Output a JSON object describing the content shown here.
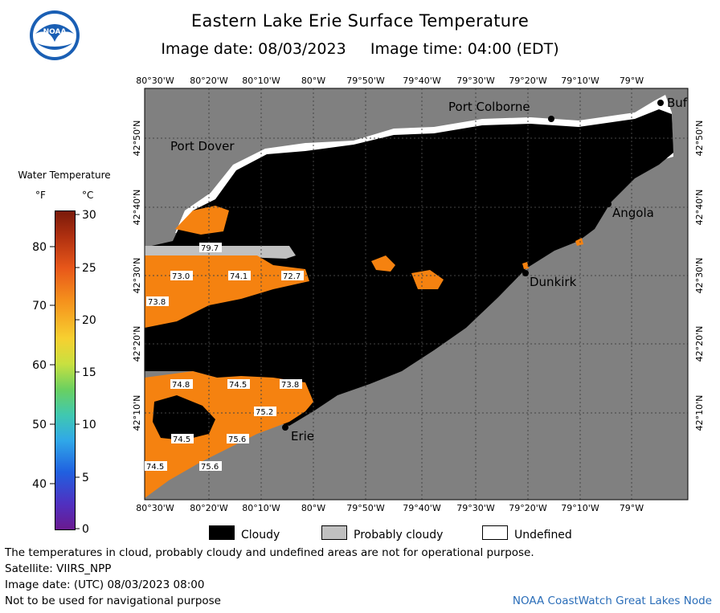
{
  "header": {
    "title": "Eastern Lake Erie Surface Temperature",
    "image_date": "Image date: 08/03/2023",
    "image_time": "Image time: 04:00 (EDT)",
    "logo_text": "NOAA"
  },
  "map": {
    "lon_ticks": [
      "80°30'W",
      "80°20'W",
      "80°10'W",
      "80°W",
      "79°50'W",
      "79°40'W",
      "79°30'W",
      "79°20'W",
      "79°10'W",
      "79°W"
    ],
    "lat_ticks": [
      "42°50'N",
      "42°40'N",
      "42°30'N",
      "42°20'N",
      "42°10'N"
    ],
    "places": {
      "port_dover": "Port Dover",
      "port_colborne": "Port Colborne",
      "buffalo": "Buf",
      "angola": "Angola",
      "dunkirk": "Dunkirk",
      "erie": "Erie"
    },
    "temp_labels": [
      {
        "id": "t1",
        "text": "79.7"
      },
      {
        "id": "t2",
        "text": "73.0"
      },
      {
        "id": "t3",
        "text": "74.1"
      },
      {
        "id": "t4",
        "text": "72.7"
      },
      {
        "id": "t5",
        "text": "73.8"
      },
      {
        "id": "t6",
        "text": "74.8"
      },
      {
        "id": "t7",
        "text": "74.5"
      },
      {
        "id": "t8",
        "text": "73.8"
      },
      {
        "id": "t9",
        "text": "75.2"
      },
      {
        "id": "t10",
        "text": "74.5"
      },
      {
        "id": "t11",
        "text": "75.6"
      },
      {
        "id": "t12",
        "text": "74.5"
      },
      {
        "id": "t13",
        "text": "75.6"
      }
    ],
    "colors": {
      "land": "#808080",
      "cloud": "#000000",
      "warm_water": "#f58210",
      "undefined": "#ffffff",
      "grid": "#333333"
    }
  },
  "colorbar": {
    "title": "Water Temperature",
    "unit_f": "°F",
    "unit_c": "°C",
    "f_ticks": [
      "80",
      "70",
      "60",
      "50",
      "40"
    ],
    "c_ticks": [
      "30",
      "25",
      "20",
      "15",
      "10",
      "5",
      "0"
    ]
  },
  "legend": {
    "cloudy": "Cloudy",
    "probably_cloudy": "Probably cloudy",
    "undefined": "Undefined"
  },
  "footer": {
    "note": "The temperatures in cloud, probably cloudy and undefined areas are not for operational purpose.",
    "satellite": "Satellite: VIIRS_NPP",
    "utc_date": "Image date: (UTC) 08/03/2023  08:00",
    "nav_warning": "Not to be used for navigational purpose",
    "credit": "NOAA CoastWatch Great Lakes Node"
  }
}
